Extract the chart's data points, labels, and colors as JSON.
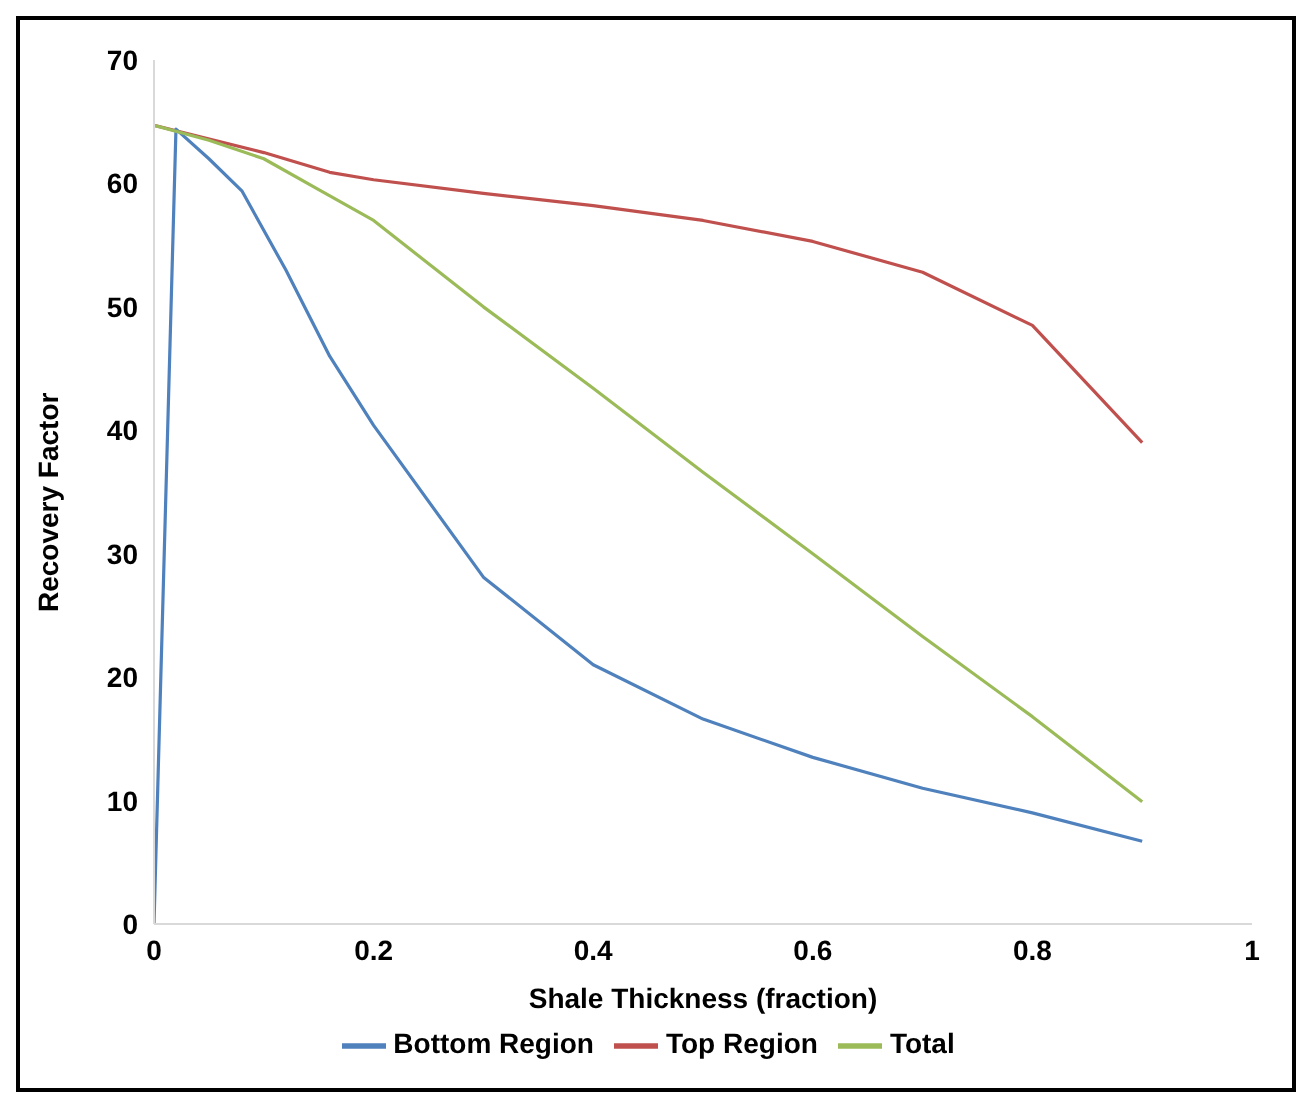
{
  "chart_data": {
    "type": "line",
    "xlabel": "Shale Thickness (fraction)",
    "ylabel": "Recovery Factor",
    "xlim": [
      0,
      1
    ],
    "xticks": [
      0,
      0.2,
      0.4,
      0.6,
      0.8,
      1
    ],
    "ylim": [
      0,
      70
    ],
    "yticks": [
      0,
      10,
      20,
      30,
      40,
      50,
      60,
      70
    ],
    "grid": false,
    "legend": "bottom",
    "marker": "none",
    "line_style": "solid",
    "series": [
      {
        "name": "Top Region",
        "color": "#c0504d",
        "x": [
          0,
          0.1,
          0.16,
          0.2,
          0.3,
          0.4,
          0.5,
          0.6,
          0.7,
          0.8,
          0.9
        ],
        "values": [
          64.7,
          62.5,
          60.9,
          60.3,
          59.2,
          58.2,
          57.0,
          55.3,
          52.8,
          48.5,
          39
        ]
      },
      {
        "name": "Bottom Region",
        "color": "#4f81bd",
        "x": [
          0,
          0.02,
          0.05,
          0.08,
          0.12,
          0.16,
          0.2,
          0.3,
          0.4,
          0.5,
          0.6,
          0.7,
          0.8,
          0.9
        ],
        "values": [
          0,
          64.4,
          62,
          59.4,
          53,
          46,
          40.4,
          28.1,
          21.0,
          16.6,
          13.5,
          11,
          9,
          6.7
        ]
      },
      {
        "name": "Total",
        "color": "#9bbb59",
        "x": [
          0,
          0.05,
          0.1,
          0.15,
          0.2,
          0.3,
          0.4,
          0.5,
          0.6,
          0.7,
          0.8,
          0.9
        ],
        "values": [
          64.7,
          63.5,
          62,
          59.5,
          57,
          50,
          43.4,
          36.6,
          30,
          23.3,
          16.8,
          9.9
        ]
      }
    ]
  }
}
